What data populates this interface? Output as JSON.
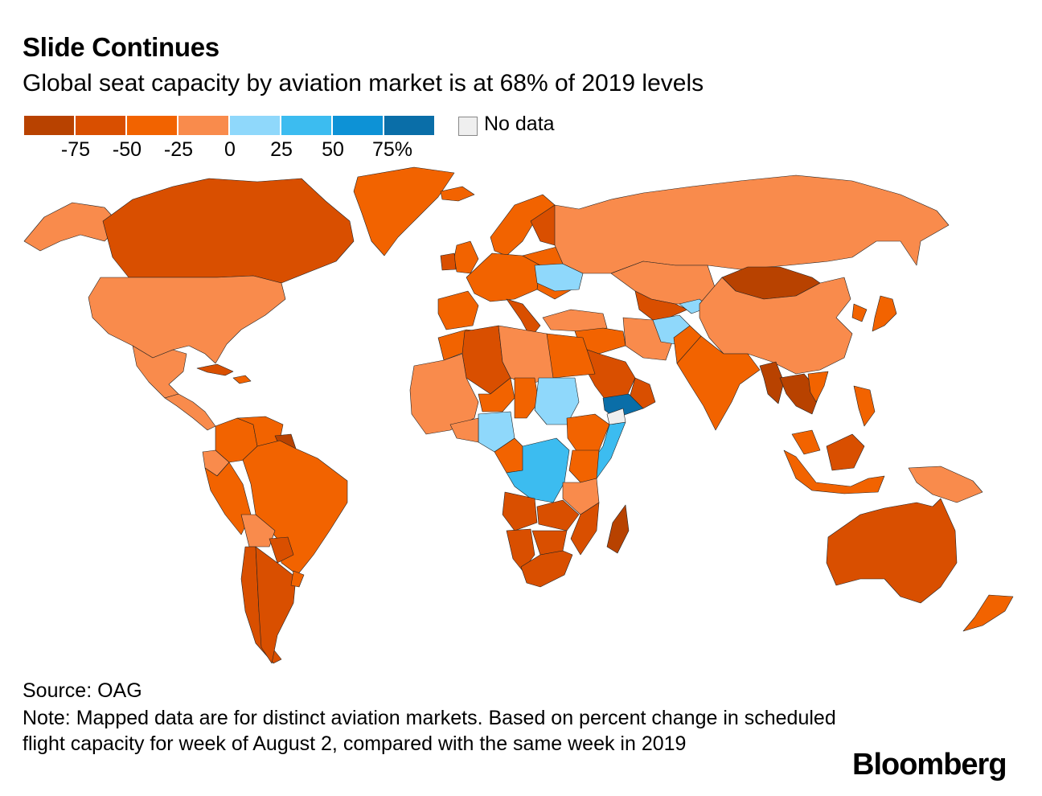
{
  "title": "Slide Continues",
  "subtitle": "Global seat capacity by aviation market is at 68% of 2019 levels",
  "legend": {
    "colors": [
      "#b84200",
      "#d94f00",
      "#f26300",
      "#f98b4c",
      "#8fd8fb",
      "#3cbcf0",
      "#0d92d6",
      "#0a6ea8"
    ],
    "ticks": [
      "-75",
      "-50",
      "-25",
      "0",
      "25",
      "50",
      "75%"
    ],
    "no_data_label": "No data",
    "no_data_color": "#efefef"
  },
  "regions": [
    {
      "name": "Alaska",
      "color": "#f98b4c"
    },
    {
      "name": "Canada",
      "color": "#d94f00"
    },
    {
      "name": "Greenland",
      "color": "#f26300"
    },
    {
      "name": "United States",
      "color": "#f98b4c"
    },
    {
      "name": "Mexico",
      "color": "#f98b4c"
    },
    {
      "name": "Central America",
      "color": "#f98b4c"
    },
    {
      "name": "Cuba",
      "color": "#d94f00"
    },
    {
      "name": "Caribbean",
      "color": "#f26300"
    },
    {
      "name": "Colombia",
      "color": "#f26300"
    },
    {
      "name": "Venezuela",
      "color": "#f26300"
    },
    {
      "name": "Guianas",
      "color": "#b84200"
    },
    {
      "name": "Ecuador",
      "color": "#f98b4c"
    },
    {
      "name": "Peru",
      "color": "#f26300"
    },
    {
      "name": "Brazil",
      "color": "#f26300"
    },
    {
      "name": "Bolivia",
      "color": "#f98b4c"
    },
    {
      "name": "Paraguay",
      "color": "#d94f00"
    },
    {
      "name": "Chile",
      "color": "#d94f00"
    },
    {
      "name": "Argentina",
      "color": "#d94f00"
    },
    {
      "name": "Uruguay",
      "color": "#f26300"
    },
    {
      "name": "Iceland",
      "color": "#f26300"
    },
    {
      "name": "United Kingdom",
      "color": "#f26300"
    },
    {
      "name": "Ireland",
      "color": "#d94f00"
    },
    {
      "name": "Scandinavia",
      "color": "#f26300"
    },
    {
      "name": "Finland",
      "color": "#d94f00"
    },
    {
      "name": "Western Europe",
      "color": "#f26300"
    },
    {
      "name": "Iberia",
      "color": "#f26300"
    },
    {
      "name": "Italy",
      "color": "#d94f00"
    },
    {
      "name": "Eastern Europe",
      "color": "#f26300"
    },
    {
      "name": "Ukraine",
      "color": "#8fd8fb"
    },
    {
      "name": "Turkey",
      "color": "#f98b4c"
    },
    {
      "name": "Russia",
      "color": "#f98b4c"
    },
    {
      "name": "Kazakhstan",
      "color": "#f98b4c"
    },
    {
      "name": "Central Asia",
      "color": "#d94f00"
    },
    {
      "name": "Kyrgyzstan",
      "color": "#8fd8fb"
    },
    {
      "name": "Mongolia",
      "color": "#b84200"
    },
    {
      "name": "China",
      "color": "#f98b4c"
    },
    {
      "name": "Korea",
      "color": "#f26300"
    },
    {
      "name": "Japan",
      "color": "#f26300"
    },
    {
      "name": "Middle East",
      "color": "#f26300"
    },
    {
      "name": "Iran",
      "color": "#f98b4c"
    },
    {
      "name": "Afghanistan",
      "color": "#8fd8fb"
    },
    {
      "name": "Pakistan",
      "color": "#f26300"
    },
    {
      "name": "Saudi Arabia",
      "color": "#d94f00"
    },
    {
      "name": "Oman",
      "color": "#d94f00"
    },
    {
      "name": "Yemen",
      "color": "#0a6ea8"
    },
    {
      "name": "India",
      "color": "#f26300"
    },
    {
      "name": "Myanmar",
      "color": "#b84200"
    },
    {
      "name": "Indochina",
      "color": "#b84200"
    },
    {
      "name": "Vietnam",
      "color": "#f26300"
    },
    {
      "name": "Philippines",
      "color": "#f26300"
    },
    {
      "name": "Malaysia",
      "color": "#f26300"
    },
    {
      "name": "Borneo",
      "color": "#d94f00"
    },
    {
      "name": "Indonesia",
      "color": "#f26300"
    },
    {
      "name": "Papua New Guinea",
      "color": "#f98b4c"
    },
    {
      "name": "Australia",
      "color": "#d94f00"
    },
    {
      "name": "New Zealand",
      "color": "#f26300"
    },
    {
      "name": "Morocco",
      "color": "#f26300"
    },
    {
      "name": "Algeria",
      "color": "#d94f00"
    },
    {
      "name": "Libya",
      "color": "#f98b4c"
    },
    {
      "name": "Egypt",
      "color": "#f26300"
    },
    {
      "name": "West Africa",
      "color": "#f98b4c"
    },
    {
      "name": "Niger",
      "color": "#f26300"
    },
    {
      "name": "Chad",
      "color": "#f26300"
    },
    {
      "name": "Sudan",
      "color": "#8fd8fb"
    },
    {
      "name": "Nigeria",
      "color": "#8fd8fb"
    },
    {
      "name": "Ghana",
      "color": "#f98b4c"
    },
    {
      "name": "Cameroon",
      "color": "#f26300"
    },
    {
      "name": "Ethiopia",
      "color": "#f26300"
    },
    {
      "name": "Somalia",
      "color": "#3cbcf0"
    },
    {
      "name": "Somaliland",
      "color": "#efefef"
    },
    {
      "name": "DR Congo",
      "color": "#3cbcf0"
    },
    {
      "name": "Kenya",
      "color": "#f26300"
    },
    {
      "name": "Tanzania",
      "color": "#f98b4c"
    },
    {
      "name": "Angola",
      "color": "#d94f00"
    },
    {
      "name": "Zambia",
      "color": "#d94f00"
    },
    {
      "name": "Mozambique",
      "color": "#d94f00"
    },
    {
      "name": "Namibia",
      "color": "#d94f00"
    },
    {
      "name": "Botswana",
      "color": "#d94f00"
    },
    {
      "name": "South Africa",
      "color": "#d94f00"
    },
    {
      "name": "Madagascar",
      "color": "#b84200"
    }
  ],
  "source": "Source: OAG",
  "note": "Note: Mapped data are for distinct aviation markets. Based on percent change in scheduled flight capacity for week of August 2, compared with the same week in 2019",
  "brand": "Bloomberg"
}
